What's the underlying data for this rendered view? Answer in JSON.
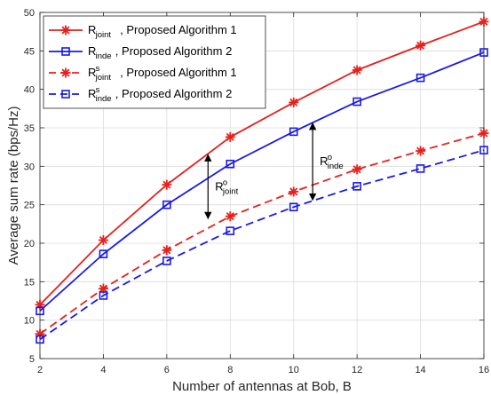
{
  "chart_data": {
    "type": "line",
    "xlabel": "Number of antennas at Bob, B",
    "ylabel": "Average sum rate (bps/Hz)",
    "xlim": [
      2,
      16
    ],
    "ylim": [
      5,
      50
    ],
    "xticks": [
      2,
      4,
      6,
      8,
      10,
      12,
      14,
      16
    ],
    "yticks": [
      5,
      10,
      15,
      20,
      25,
      30,
      35,
      40,
      45,
      50
    ],
    "grid": true,
    "legend_position": "top-left",
    "x": [
      2,
      4,
      6,
      8,
      10,
      12,
      14,
      16
    ],
    "series": [
      {
        "name": "R_joint, Proposed Algorithm 1",
        "legend": {
          "base": "R",
          "sup": "",
          "sub": "joint",
          "rest": ", Proposed Algorithm 1"
        },
        "values": [
          12.0,
          20.4,
          27.6,
          33.8,
          38.3,
          42.5,
          45.7,
          48.8
        ],
        "color": "#e8201c",
        "dash": "solid",
        "marker": "asterisk"
      },
      {
        "name": "R_inde, Proposed Algorithm 2",
        "legend": {
          "base": "R",
          "sup": "",
          "sub": "inde",
          "rest": ", Proposed Algorithm 2"
        },
        "values": [
          11.2,
          18.6,
          25.0,
          30.3,
          34.5,
          38.4,
          41.5,
          44.8
        ],
        "color": "#1a1ae6",
        "dash": "solid",
        "marker": "square"
      },
      {
        "name": "R^s_joint, Proposed Algorithm 1",
        "legend": {
          "base": "R",
          "sup": "s",
          "sub": "joint",
          "rest": ", Proposed Algorithm 1"
        },
        "values": [
          8.2,
          14.1,
          19.1,
          23.5,
          26.7,
          29.6,
          32.0,
          34.3
        ],
        "color": "#e8201c",
        "dash": "dashed",
        "marker": "asterisk"
      },
      {
        "name": "R^s_inde, Proposed Algorithm 2",
        "legend": {
          "base": "R",
          "sup": "s",
          "sub": "inde",
          "rest": ", Proposed Algorithm 2"
        },
        "values": [
          7.5,
          13.2,
          17.7,
          21.6,
          24.7,
          27.4,
          29.7,
          32.1
        ],
        "color": "#1a1ae6",
        "dash": "dashed",
        "marker": "square"
      }
    ],
    "annotations": [
      {
        "label": {
          "base": "R",
          "sup": "o",
          "sub": "joint"
        },
        "x": 7.3,
        "y_top": 31.5,
        "y_bottom": 23.2
      },
      {
        "label": {
          "base": "R",
          "sup": "o",
          "sub": "inde"
        },
        "x": 10.6,
        "y_top": 35.6,
        "y_bottom": 25.6
      }
    ]
  }
}
